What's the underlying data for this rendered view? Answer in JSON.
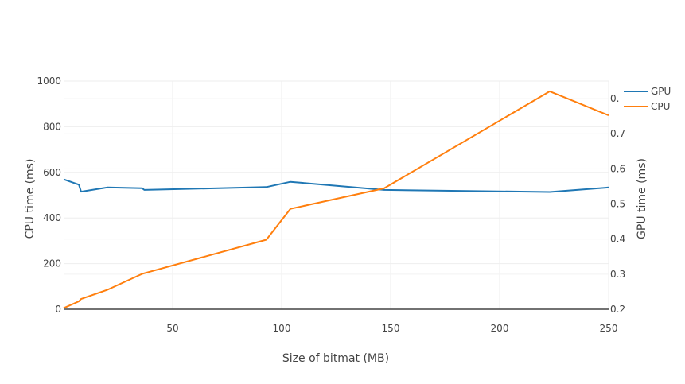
{
  "chart_data": {
    "type": "line",
    "title": "",
    "xlabel": "Size of bitmat (MB)",
    "ylabel": "CPU time (ms)",
    "y2label": "GPU time (ms)",
    "xlim": [
      0,
      250
    ],
    "ylim": [
      0,
      1000
    ],
    "y2lim": [
      0.2,
      0.85
    ],
    "x_ticks": [
      "50",
      "100",
      "150",
      "200",
      "250"
    ],
    "y_ticks": [
      "0",
      "200",
      "400",
      "600",
      "800",
      "1000"
    ],
    "y2_ticks": [
      "0.2",
      "0.3",
      "0.4",
      "0.5",
      "0.6",
      "0.7",
      "0.8"
    ],
    "grid": true,
    "legend_position": "top-right",
    "series": [
      {
        "name": "GPU",
        "axis": "right",
        "color": "#1f77b4",
        "x": [
          0,
          7,
          8,
          20,
          36,
          37,
          93,
          104,
          147,
          223,
          250
        ],
        "y": [
          0.57,
          0.555,
          0.535,
          0.547,
          0.545,
          0.54,
          0.548,
          0.563,
          0.54,
          0.534,
          0.547
        ]
      },
      {
        "name": "CPU",
        "axis": "left",
        "color": "#ff7f0e",
        "x": [
          0,
          7,
          8,
          20,
          36,
          37,
          93,
          104,
          147,
          223,
          250
        ],
        "y": [
          5,
          35,
          45,
          85,
          155,
          158,
          305,
          440,
          530,
          955,
          850
        ]
      }
    ]
  }
}
